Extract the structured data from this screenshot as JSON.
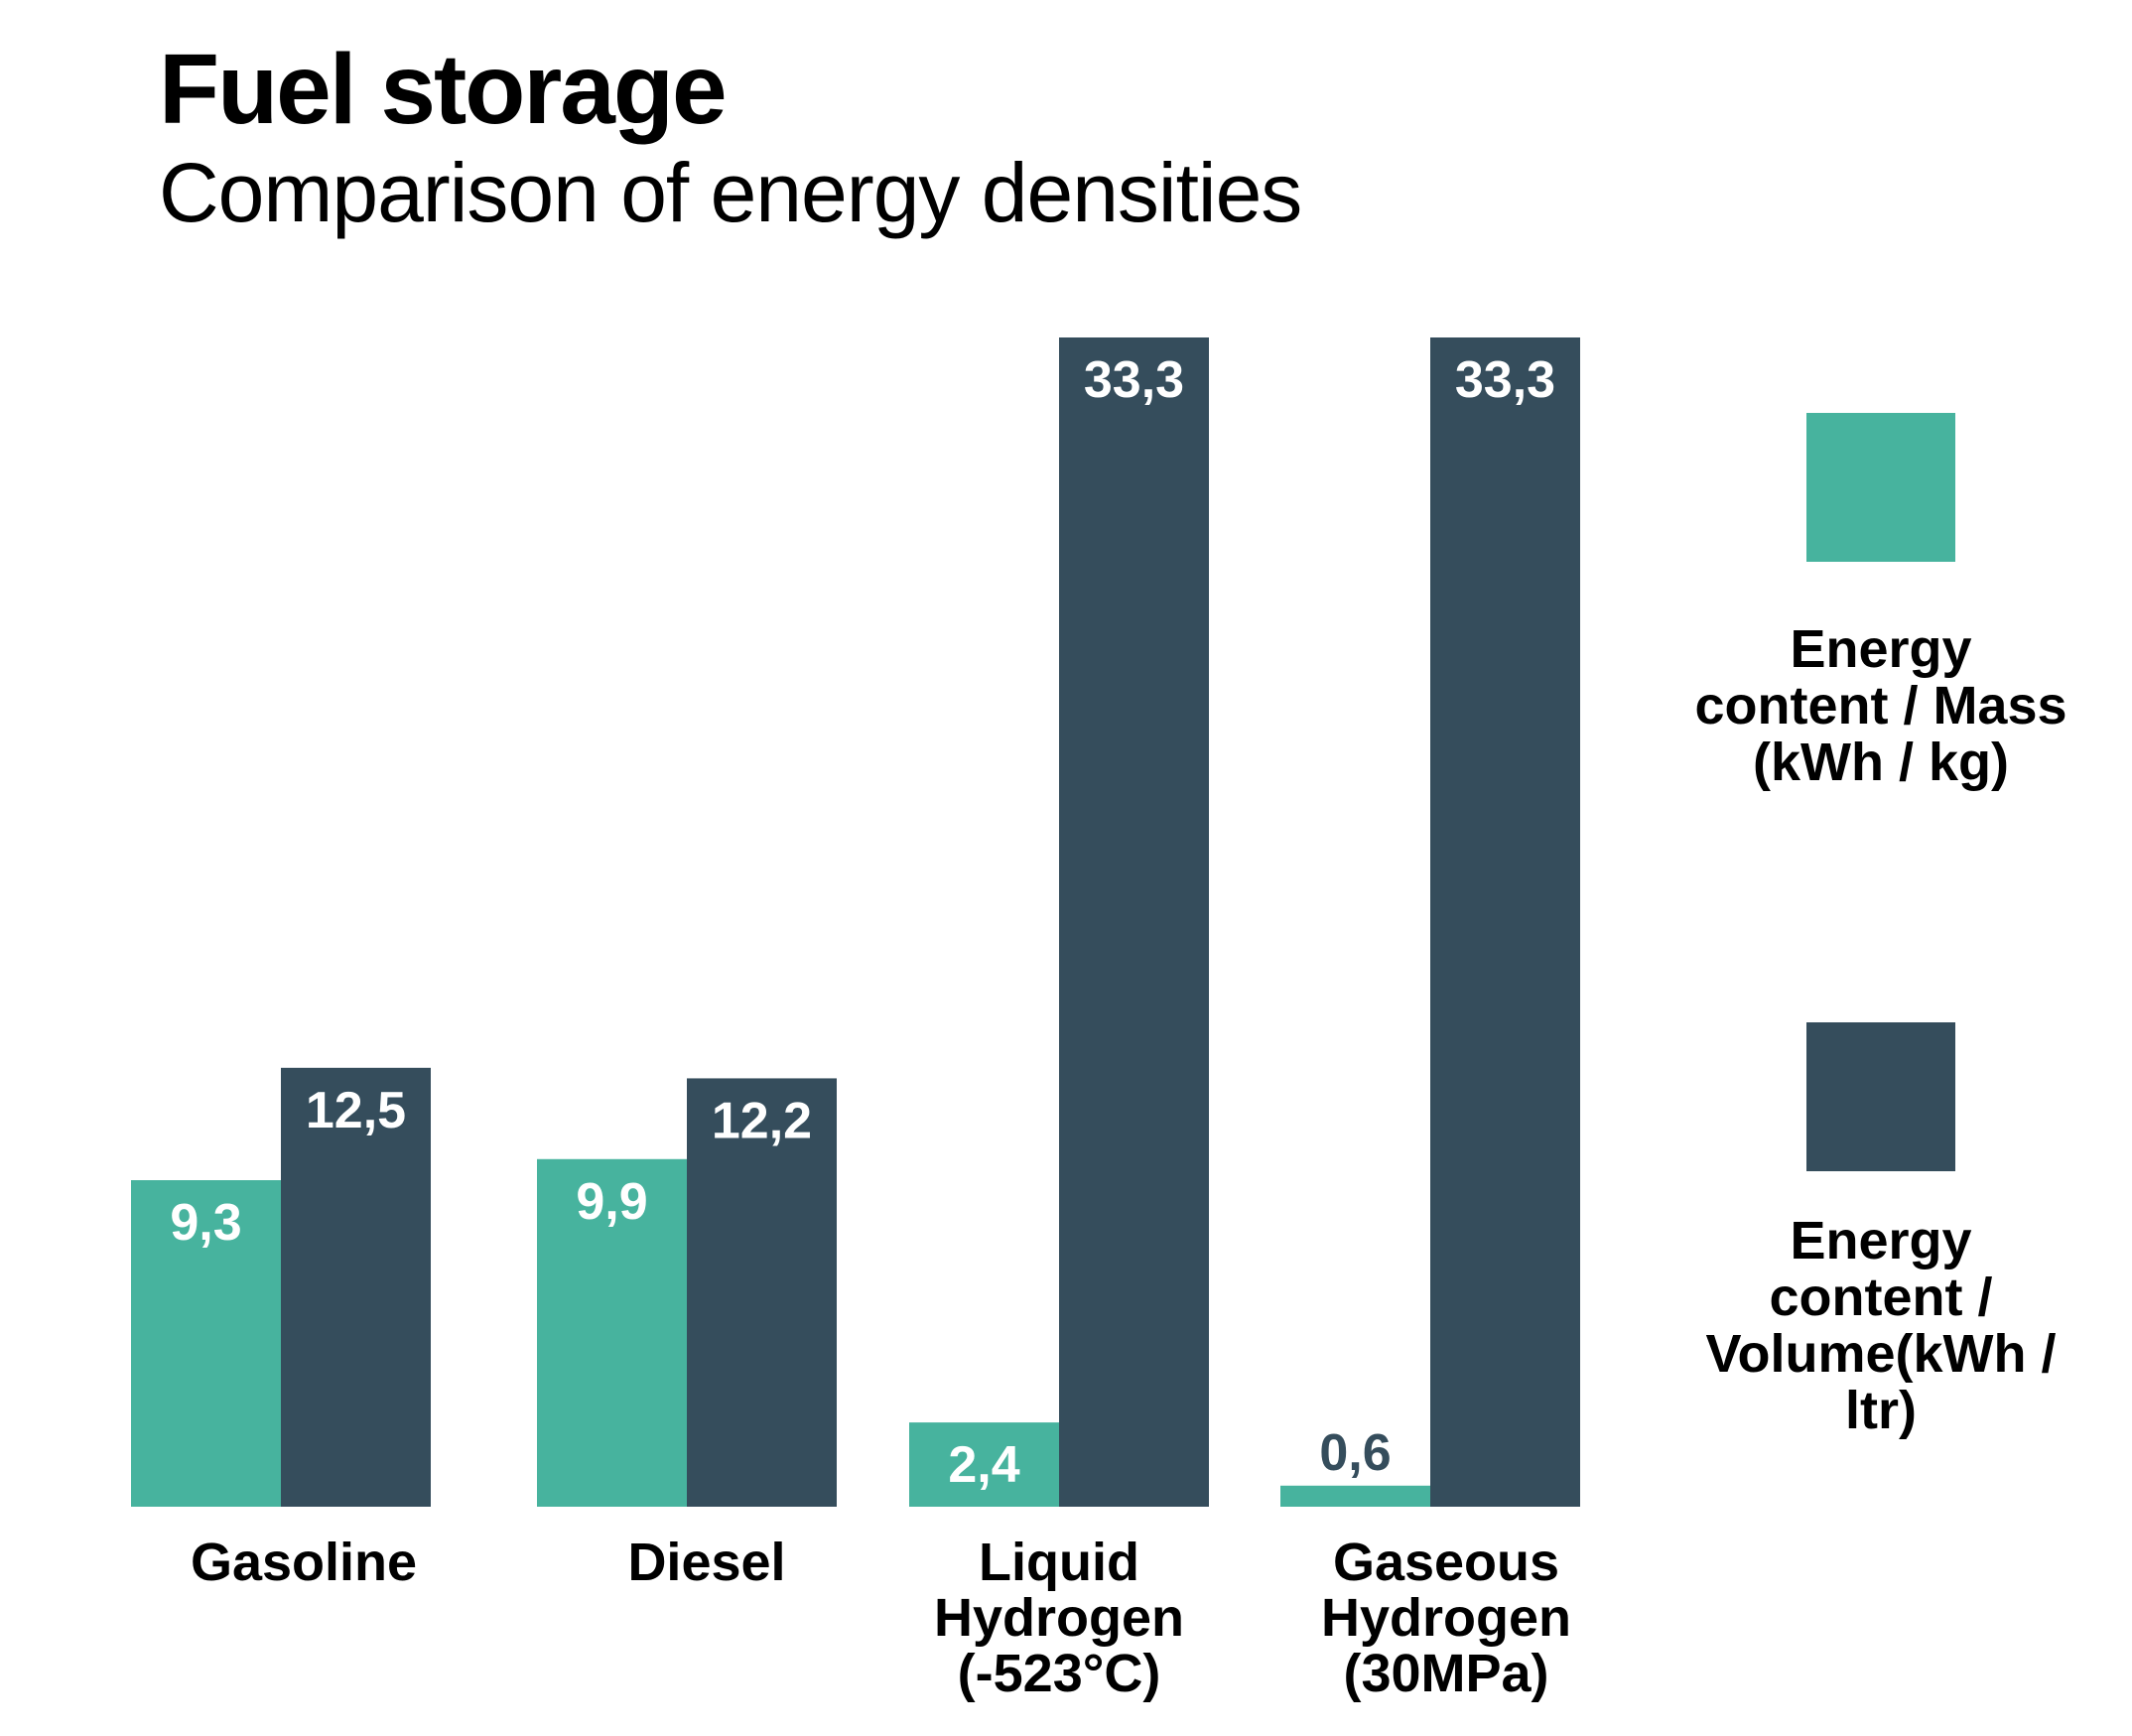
{
  "title": "Fuel storage",
  "subtitle": "Comparison of energy densities",
  "colors": {
    "mass": "#47b39e",
    "volume": "#354d5c"
  },
  "chart_data": {
    "type": "bar",
    "categories": [
      [
        "Gasoline"
      ],
      [
        "Diesel"
      ],
      [
        "Liquid",
        "Hydrogen",
        "(-523°C)"
      ],
      [
        "Gaseous",
        "Hydrogen",
        "(30MPa)"
      ]
    ],
    "series": [
      {
        "name": "Energy content / Mass (kWh / kg)",
        "name_lines": [
          "Energy",
          "content / Mass",
          "(kWh / kg)"
        ],
        "values": [
          9.3,
          9.9,
          2.4,
          0.6
        ],
        "labels": [
          "9,3",
          "9,9",
          "2,4",
          "0,6"
        ]
      },
      {
        "name": "Energy content / Volume(kWh / ltr)",
        "name_lines": [
          "Energy",
          "content /",
          "Volume(kWh /",
          "ltr)"
        ],
        "values": [
          12.5,
          12.2,
          33.3,
          33.3
        ],
        "labels": [
          "12,5",
          "12,2",
          "33,3",
          "33,3"
        ]
      }
    ],
    "ylim": [
      0,
      33.3
    ],
    "legend": "right"
  }
}
